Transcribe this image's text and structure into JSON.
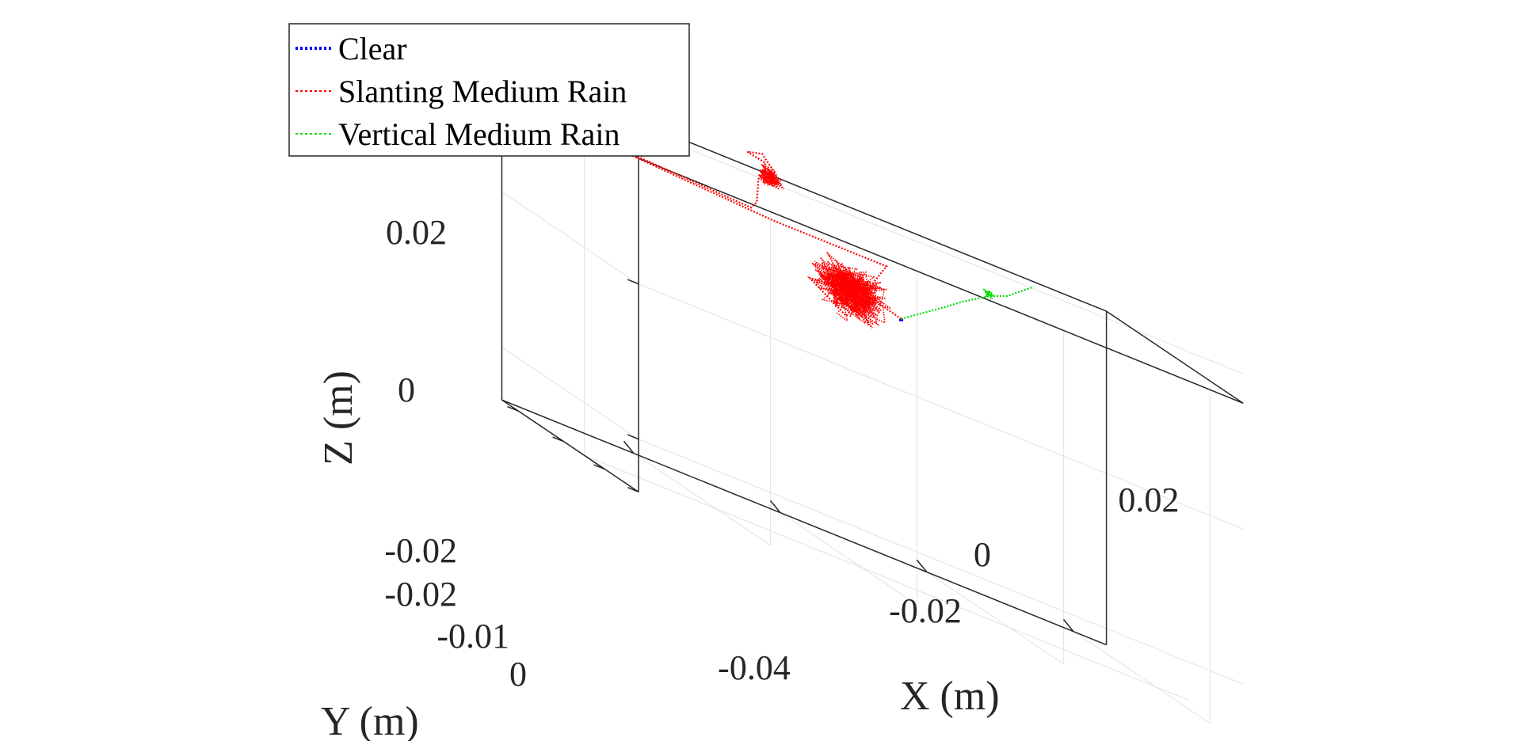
{
  "chart_data": {
    "type": "line",
    "title": "",
    "xlabel": "X (m)",
    "ylabel": "Y (m)",
    "zlabel": "Z (m)",
    "x_ticks": [
      "-0.04",
      "-0.02",
      "0",
      "0.02"
    ],
    "y_ticks": [
      "-0.02",
      "-0.02",
      "-0.01",
      "0"
    ],
    "z_ticks": [
      "0.02",
      "0",
      "-0.02"
    ],
    "legend_position": "top-left",
    "series": [
      {
        "name": "Clear",
        "color": "#0000ff",
        "style": "dotted",
        "x": [
          -0.0035,
          -0.0035
        ],
        "y": [
          0.0,
          0.0
        ],
        "z": [
          0.0045,
          0.004
        ]
      },
      {
        "name": "Slanting Medium Rain",
        "color": "#ff0000",
        "style": "dotted",
        "x": [
          -0.0035,
          -0.009,
          -0.016,
          -0.011,
          -0.0055,
          -0.021,
          -0.06,
          -0.024,
          -0.0232,
          -0.023,
          -0.022,
          -0.0245,
          -0.0225,
          -0.0205
        ],
        "y": [
          0.0,
          0.0,
          0.0,
          0.0,
          0.0,
          0.0,
          0.0,
          0.0,
          0.0,
          0.0,
          0.0,
          0.0,
          0.0,
          0.0
        ],
        "z": [
          0.0045,
          0.006,
          0.005,
          0.002,
          0.0105,
          0.0105,
          0.0125,
          0.011,
          0.012,
          0.015,
          0.0175,
          0.018,
          0.0185,
          0.0165
        ]
      },
      {
        "name": "Vertical Medium Rain",
        "color": "#00dd00",
        "style": "dotted",
        "x": [
          -0.0035,
          0.002,
          0.005,
          0.0085,
          0.011,
          0.0145
        ],
        "y": [
          0.0,
          0.0,
          0.0,
          0.0,
          0.0,
          0.0
        ],
        "z": [
          0.0045,
          0.008,
          0.01,
          0.012,
          0.013,
          0.0155
        ]
      }
    ]
  }
}
